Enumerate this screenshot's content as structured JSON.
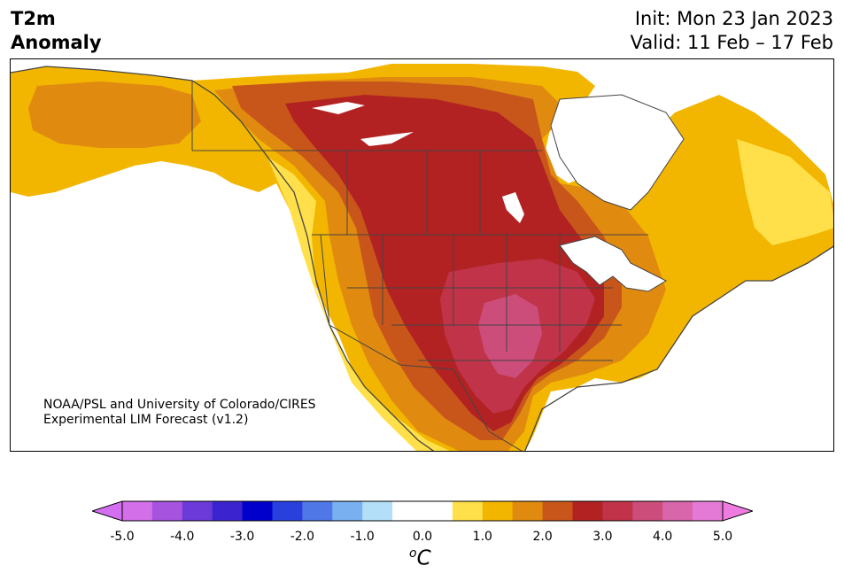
{
  "header": {
    "title_line1": "T2m",
    "title_line2": "Anomaly",
    "init": "Init: Mon 23 Jan 2023",
    "valid": "Valid: 11 Feb – 17 Feb"
  },
  "credit": {
    "line1": "NOAA/PSL and University of Colorado/CIRES",
    "line2": "Experimental LIM Forecast (v1.2)"
  },
  "colorbar": {
    "ticks": [
      "-5.0",
      "-4.0",
      "-3.0",
      "-2.0",
      "-1.0",
      "0.0",
      "1.0",
      "2.0",
      "3.0",
      "4.0",
      "5.0"
    ],
    "colors": [
      "#d36fe8",
      "#a653e0",
      "#6b3ad8",
      "#3b24d0",
      "#0000cc",
      "#2940dc",
      "#4f78e6",
      "#78b0f0",
      "#b3e0f8",
      "#ffffff",
      "#ffffff",
      "#ffe04a",
      "#f2b600",
      "#e08a10",
      "#c8561a",
      "#b22222",
      "#c03348",
      "#cc4d7a",
      "#d866aa",
      "#e57ad6"
    ],
    "under_color": "#d46ef0",
    "over_color": "#f07be0",
    "unit_symbol": "o",
    "unit_letter": "C"
  },
  "map_colors": {
    "ocean": "#ffffff",
    "level_1": "#ffe04a",
    "level_1_5": "#f2b600",
    "level_2": "#e08a10",
    "level_2_5": "#c8561a",
    "level_3": "#b22222",
    "level_3_5": "#c03348",
    "level_4": "#cc4d7a",
    "borders": "#444444"
  }
}
